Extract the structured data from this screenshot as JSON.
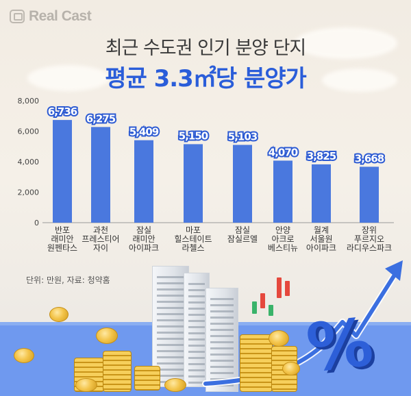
{
  "brand": {
    "logo_text": "Real Cast"
  },
  "title": {
    "line1": "최근 수도권 인기 분양 단지",
    "line2": "평균 3.3㎡당 분양가"
  },
  "source_note": "단위: 만원, 자료: 청약홈",
  "colors": {
    "bar": "#4a78de",
    "title_accent": "#2a5dd9",
    "band": "#6f99ef"
  },
  "chart_data": {
    "type": "bar",
    "categories": [
      [
        "반포",
        "래미안",
        "원펜타스"
      ],
      [
        "과천",
        "프레스티어",
        "자이"
      ],
      [
        "잠실",
        "래미안",
        "아이파크"
      ],
      [
        "마포",
        "힐스테이트",
        "라첼스"
      ],
      [
        "잠실",
        "잠실르엘"
      ],
      [
        "안양",
        "아크로",
        "베스티뉴"
      ],
      [
        "월계",
        "서울원",
        "아이파크"
      ],
      [
        "장위",
        "푸르지오",
        "라디우스파크"
      ]
    ],
    "values": [
      6736,
      6275,
      5409,
      5150,
      5103,
      4070,
      3825,
      3668
    ],
    "value_labels": [
      "6,736",
      "6,275",
      "5,409",
      "5,150",
      "5,103",
      "4,070",
      "3,825",
      "3,668"
    ],
    "yticks": [
      "0",
      "2,000",
      "4,000",
      "6,000",
      "8,000"
    ],
    "ylim": [
      0,
      8000
    ],
    "grid": false
  }
}
